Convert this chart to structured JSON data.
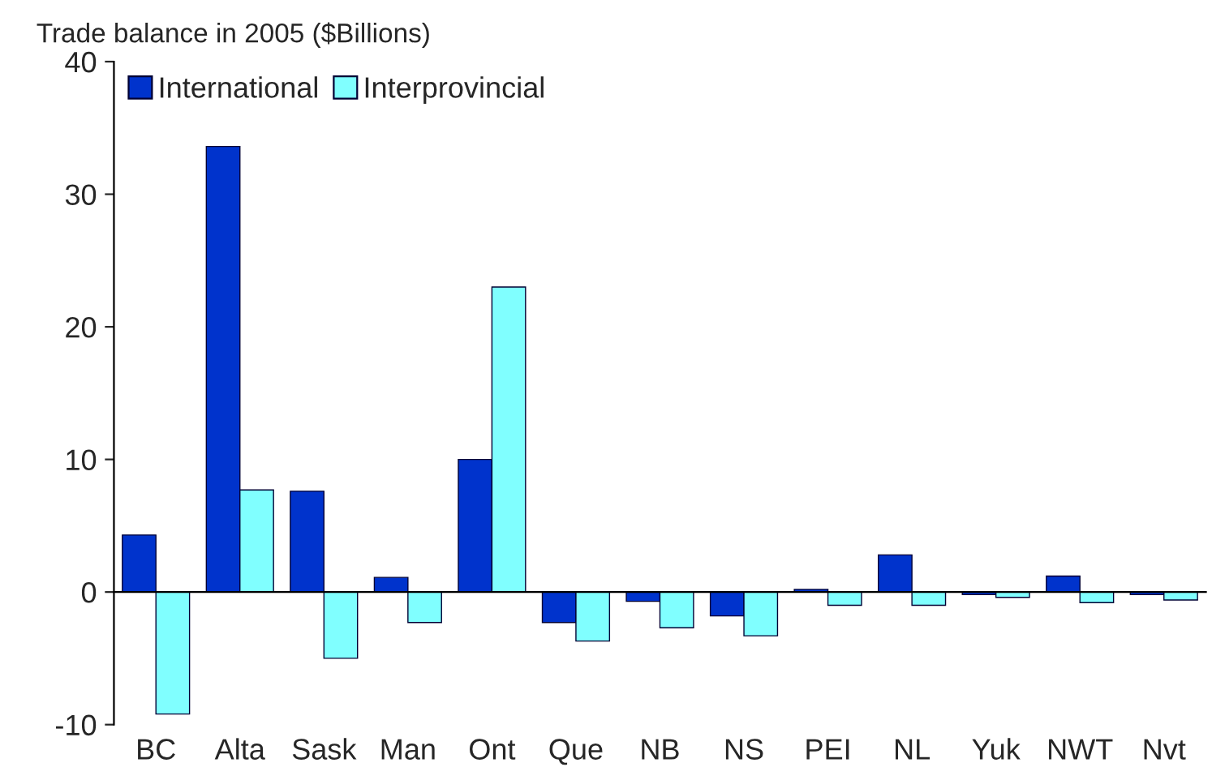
{
  "chart_data": {
    "type": "bar",
    "ylabel": "Trade balance in 2005 ($Billions)",
    "categories": [
      "BC",
      "Alta",
      "Sask",
      "Man",
      "Ont",
      "Que",
      "NB",
      "NS",
      "PEI",
      "NL",
      "Yuk",
      "NWT",
      "Nvt"
    ],
    "series": [
      {
        "name": "International",
        "color": "#0033cc",
        "values": [
          4.3,
          33.6,
          7.6,
          1.1,
          10.0,
          -2.3,
          -0.7,
          -1.8,
          0.2,
          2.8,
          -0.2,
          1.2,
          -0.2
        ]
      },
      {
        "name": "Interprovincial",
        "color": "#80ffff",
        "values": [
          -9.2,
          7.7,
          -5.0,
          -2.3,
          23.0,
          -3.7,
          -2.7,
          -3.3,
          -1.0,
          -1.0,
          -0.4,
          -0.8,
          -0.6
        ]
      }
    ],
    "ylim": [
      -10,
      40
    ],
    "yticks": [
      -10,
      0,
      10,
      20,
      30,
      40
    ],
    "legend": "top left"
  }
}
